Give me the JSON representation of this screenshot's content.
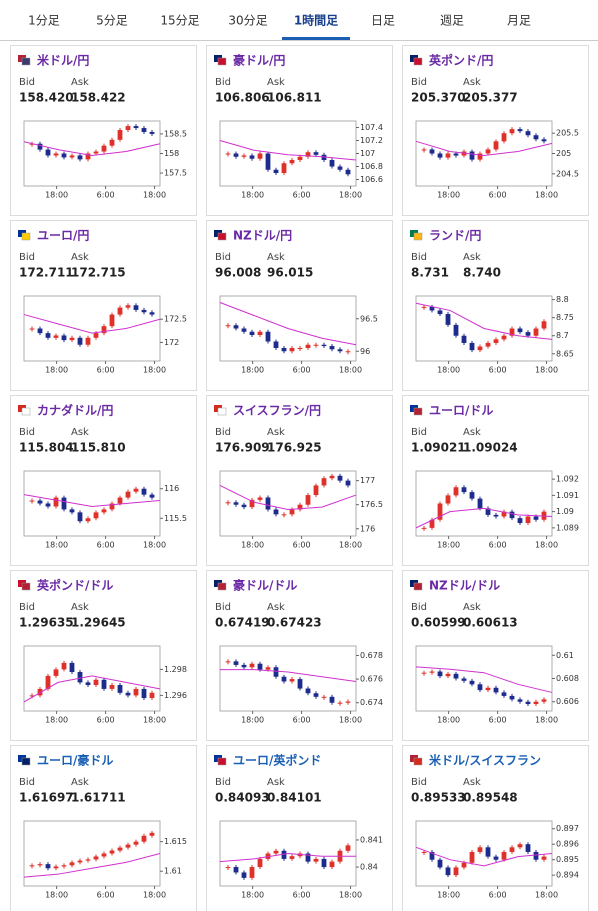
{
  "tabs": [
    "1分足",
    "5分足",
    "15分足",
    "30分足",
    "1時間足",
    "日足",
    "週足",
    "月足"
  ],
  "active_tab": 4,
  "labels": {
    "bid": "Bid",
    "ask": "Ask"
  },
  "time_labels": [
    "18:00",
    "6:00",
    "18:00"
  ],
  "cards": [
    {
      "pair": "米ドル/円",
      "color": "#6a2aa5",
      "bid": "158.420",
      "ask": "158.422",
      "chart": {
        "type": "candlestick",
        "ylim": [
          157.17,
          158.83
        ],
        "yticks": [
          157.5,
          158,
          158.5
        ],
        "closes": [
          158.25,
          158.1,
          157.95,
          158.0,
          157.9,
          157.95,
          157.85,
          158.0,
          158.05,
          158.2,
          158.35,
          158.6,
          158.7,
          158.65,
          158.55,
          158.5
        ],
        "ma": [
          158.3,
          158.1,
          157.95,
          158.05,
          158.25
        ]
      }
    },
    {
      "pair": "豪ドル/円",
      "color": "#6a2aa5",
      "bid": "106.806",
      "ask": "106.811",
      "chart": {
        "type": "candlestick",
        "ylim": [
          106.5,
          107.5
        ],
        "yticks": [
          106.6,
          106.8,
          107,
          107.2,
          107.4
        ],
        "closes": [
          107.0,
          106.95,
          106.97,
          106.92,
          107.0,
          106.75,
          106.7,
          106.85,
          106.9,
          106.95,
          107.02,
          106.98,
          106.9,
          106.8,
          106.75,
          106.68
        ],
        "ma": [
          107.2,
          107.05,
          106.98,
          106.95,
          106.9
        ]
      }
    },
    {
      "pair": "英ポンド/円",
      "color": "#6a2aa5",
      "bid": "205.370",
      "ask": "205.377",
      "chart": {
        "type": "candlestick",
        "ylim": [
          204.2,
          205.8
        ],
        "yticks": [
          204.5,
          205,
          205.5
        ],
        "closes": [
          205.1,
          205.0,
          204.9,
          205.0,
          204.95,
          205.05,
          204.85,
          205.0,
          205.1,
          205.3,
          205.5,
          205.6,
          205.55,
          205.45,
          205.35,
          205.3
        ],
        "ma": [
          205.3,
          205.05,
          204.95,
          205.05,
          205.25
        ]
      }
    },
    {
      "pair": "ユーロ/円",
      "color": "#6a2aa5",
      "bid": "172.711",
      "ask": "172.715",
      "chart": {
        "type": "candlestick",
        "ylim": [
          171.6,
          173.0
        ],
        "yticks": [
          172,
          172.5
        ],
        "closes": [
          172.3,
          172.2,
          172.1,
          172.15,
          172.05,
          172.1,
          171.95,
          172.1,
          172.2,
          172.35,
          172.6,
          172.75,
          172.8,
          172.7,
          172.65,
          172.6
        ],
        "ma": [
          172.6,
          172.4,
          172.2,
          172.3,
          172.5
        ]
      }
    },
    {
      "pair": "NZドル/円",
      "color": "#6a2aa5",
      "bid": "96.008",
      "ask": "96.015",
      "chart": {
        "type": "candlestick",
        "ylim": [
          95.85,
          96.85
        ],
        "yticks": [
          96,
          96.5
        ],
        "closes": [
          96.4,
          96.35,
          96.3,
          96.25,
          96.3,
          96.15,
          96.05,
          96.0,
          96.05,
          96.05,
          96.1,
          96.1,
          96.08,
          96.03,
          96.0,
          96.0
        ],
        "ma": [
          96.75,
          96.55,
          96.35,
          96.2,
          96.1
        ]
      }
    },
    {
      "pair": "ランド/円",
      "color": "#6a2aa5",
      "bid": "8.731",
      "ask": "8.740",
      "chart": {
        "type": "candlestick",
        "ylim": [
          8.63,
          8.81
        ],
        "yticks": [
          8.65,
          8.7,
          8.75,
          8.8
        ],
        "closes": [
          8.78,
          8.77,
          8.76,
          8.73,
          8.7,
          8.68,
          8.66,
          8.67,
          8.68,
          8.69,
          8.7,
          8.72,
          8.71,
          8.7,
          8.72,
          8.74
        ],
        "ma": [
          8.79,
          8.77,
          8.72,
          8.7,
          8.69
        ]
      }
    },
    {
      "pair": "カナダドル/円",
      "color": "#6a2aa5",
      "bid": "115.804",
      "ask": "115.810",
      "chart": {
        "type": "candlestick",
        "ylim": [
          115.2,
          116.3
        ],
        "yticks": [
          115.5,
          116
        ],
        "closes": [
          115.8,
          115.75,
          115.7,
          115.85,
          115.65,
          115.6,
          115.45,
          115.5,
          115.6,
          115.65,
          115.75,
          115.85,
          115.95,
          116.0,
          115.9,
          115.85
        ],
        "ma": [
          115.9,
          115.8,
          115.7,
          115.75,
          115.8
        ]
      }
    },
    {
      "pair": "スイスフラン/円",
      "color": "#6a2aa5",
      "bid": "176.909",
      "ask": "176.925",
      "chart": {
        "type": "candlestick",
        "ylim": [
          175.85,
          177.2
        ],
        "yticks": [
          176,
          176.5,
          177
        ],
        "closes": [
          176.55,
          176.5,
          176.45,
          176.6,
          176.65,
          176.4,
          176.3,
          176.3,
          176.4,
          176.5,
          176.7,
          176.9,
          177.05,
          177.1,
          177.0,
          176.9
        ],
        "ma": [
          176.9,
          176.55,
          176.4,
          176.45,
          176.7
        ]
      }
    },
    {
      "pair": "ユーロ/ドル",
      "color": "#6a2aa5",
      "bid": "1.09021",
      "ask": "1.09024",
      "chart": {
        "type": "candlestick",
        "ylim": [
          1.0885,
          1.0925
        ],
        "yticks": [
          1.089,
          1.09,
          1.091,
          1.092
        ],
        "closes": [
          1.089,
          1.0895,
          1.0905,
          1.091,
          1.0915,
          1.0912,
          1.0908,
          1.0902,
          1.0898,
          1.0897,
          1.09,
          1.0896,
          1.0893,
          1.0897,
          1.0895,
          1.09
        ],
        "ma": [
          1.089,
          1.09,
          1.0902,
          1.0898,
          1.0897
        ]
      }
    },
    {
      "pair": "英ポンド/ドル",
      "color": "#6a2aa5",
      "bid": "1.29635",
      "ask": "1.29645",
      "chart": {
        "type": "candlestick",
        "ylim": [
          1.2948,
          1.2998
        ],
        "yticks": [
          1.296,
          1.298
        ],
        "closes": [
          1.296,
          1.2965,
          1.2975,
          1.298,
          1.2985,
          1.2978,
          1.297,
          1.2968,
          1.2972,
          1.2965,
          1.2968,
          1.2962,
          1.296,
          1.2965,
          1.2958,
          1.2962
        ],
        "ma": [
          1.2955,
          1.297,
          1.2975,
          1.297,
          1.2965
        ]
      }
    },
    {
      "pair": "豪ドル/ドル",
      "color": "#6a2aa5",
      "bid": "0.67419",
      "ask": "0.67423",
      "chart": {
        "type": "candlestick",
        "ylim": [
          0.6733,
          0.6788
        ],
        "yticks": [
          0.674,
          0.676,
          0.678
        ],
        "closes": [
          0.6775,
          0.6772,
          0.677,
          0.6773,
          0.6768,
          0.677,
          0.6762,
          0.6758,
          0.676,
          0.6752,
          0.6748,
          0.6745,
          0.6745,
          0.674,
          0.674,
          0.6741
        ],
        "ma": [
          0.6768,
          0.6768,
          0.6766,
          0.6762,
          0.6758
        ]
      }
    },
    {
      "pair": "NZドル/ドル",
      "color": "#6a2aa5",
      "bid": "0.60599",
      "ask": "0.60613",
      "chart": {
        "type": "candlestick",
        "ylim": [
          0.6052,
          0.6108
        ],
        "yticks": [
          0.606,
          0.608,
          0.61
        ],
        "closes": [
          0.6085,
          0.6086,
          0.6082,
          0.6084,
          0.608,
          0.6078,
          0.6075,
          0.607,
          0.6072,
          0.6068,
          0.6065,
          0.6062,
          0.606,
          0.6058,
          0.606,
          0.6062
        ],
        "ma": [
          0.609,
          0.6088,
          0.6085,
          0.6075,
          0.6068
        ]
      }
    },
    {
      "pair": "ユーロ/豪ドル",
      "color": "#1a5fb4",
      "bid": "1.61697",
      "ask": "1.61711",
      "chart": {
        "type": "candlestick",
        "ylim": [
          1.6075,
          1.6185
        ],
        "yticks": [
          1.61,
          1.615
        ],
        "closes": [
          1.611,
          1.6112,
          1.6105,
          1.6108,
          1.611,
          1.6115,
          1.6118,
          1.612,
          1.6125,
          1.613,
          1.6135,
          1.614,
          1.6145,
          1.615,
          1.616,
          1.6165
        ],
        "ma": [
          1.609,
          1.6095,
          1.6105,
          1.6115,
          1.613
        ]
      }
    },
    {
      "pair": "ユーロ/英ポンド",
      "color": "#1a5fb4",
      "bid": "0.84093",
      "ask": "0.84101",
      "chart": {
        "type": "candlestick",
        "ylim": [
          0.8393,
          0.8417
        ],
        "yticks": [
          0.84,
          0.841
        ],
        "closes": [
          0.84,
          0.8398,
          0.8396,
          0.84,
          0.8403,
          0.8405,
          0.8406,
          0.8403,
          0.8404,
          0.8405,
          0.8402,
          0.8403,
          0.84,
          0.8402,
          0.8406,
          0.8408
        ],
        "ma": [
          0.8402,
          0.8403,
          0.8405,
          0.8404,
          0.8404
        ]
      }
    },
    {
      "pair": "米ドル/スイスフラン",
      "color": "#1a5fb4",
      "bid": "0.89533",
      "ask": "0.89548",
      "chart": {
        "type": "candlestick",
        "ylim": [
          0.8933,
          0.8975
        ],
        "yticks": [
          0.894,
          0.895,
          0.896,
          0.897
        ],
        "closes": [
          0.8955,
          0.895,
          0.8945,
          0.894,
          0.8945,
          0.8948,
          0.8955,
          0.8958,
          0.8952,
          0.895,
          0.8955,
          0.8958,
          0.896,
          0.8955,
          0.895,
          0.8952
        ],
        "ma": [
          0.8958,
          0.895,
          0.8946,
          0.8952,
          0.8954
        ]
      }
    }
  ]
}
